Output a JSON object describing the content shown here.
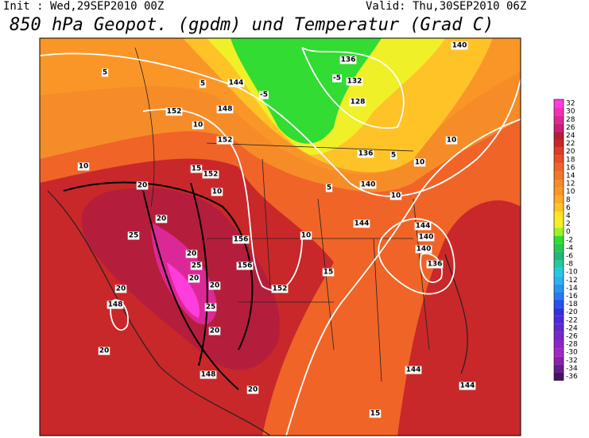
{
  "header": {
    "init": "Init : Wed,29SEP2010 00Z",
    "valid": "Valid: Thu,30SEP2010 06Z",
    "title": "850 hPa Geopot. (gpdm) und Temperatur (Grad C)"
  },
  "colorbar": {
    "ticks": [
      32,
      30,
      28,
      26,
      24,
      22,
      20,
      18,
      16,
      14,
      12,
      10,
      8,
      6,
      4,
      2,
      0,
      -2,
      -4,
      -6,
      -8,
      -10,
      -12,
      -14,
      -16,
      -18,
      -20,
      -22,
      -24,
      -26,
      -28,
      -30,
      -32,
      -34,
      -36
    ],
    "colors": [
      "#ff3cdc",
      "#f032b4",
      "#dc2896",
      "#c81e78",
      "#b41e3c",
      "#c8282a",
      "#dc3c28",
      "#e65028",
      "#f06428",
      "#f07828",
      "#f58c28",
      "#fa9628",
      "#ffaa28",
      "#ffc328",
      "#ffe628",
      "#f0f028",
      "#a0f028",
      "#32dc32",
      "#28c850",
      "#28b478",
      "#28c8a0",
      "#28c8dc",
      "#28b4f0",
      "#2896f0",
      "#2878f0",
      "#2850f0",
      "#3232dc",
      "#5028dc",
      "#6428c8",
      "#7828c8",
      "#8c28c8",
      "#a028c8",
      "#8c1eb4",
      "#641e8c",
      "#461464"
    ]
  },
  "geopotential_labels": [
    "144",
    "148",
    "152",
    "152",
    "152",
    "156",
    "156",
    "152",
    "148",
    "148",
    "144",
    "144",
    "144",
    "144",
    "140",
    "140",
    "140",
    "136",
    "136",
    "132",
    "128",
    "136",
    "140"
  ],
  "temperature_labels": [
    "20",
    "20",
    "25",
    "20",
    "25",
    "20",
    "20",
    "25",
    "20",
    "20",
    "20",
    "20",
    "15",
    "10",
    "10",
    "10",
    "5",
    "5",
    "10",
    "15",
    "15",
    "10",
    "10",
    "5",
    "5",
    "-5",
    "-5",
    "10"
  ]
}
